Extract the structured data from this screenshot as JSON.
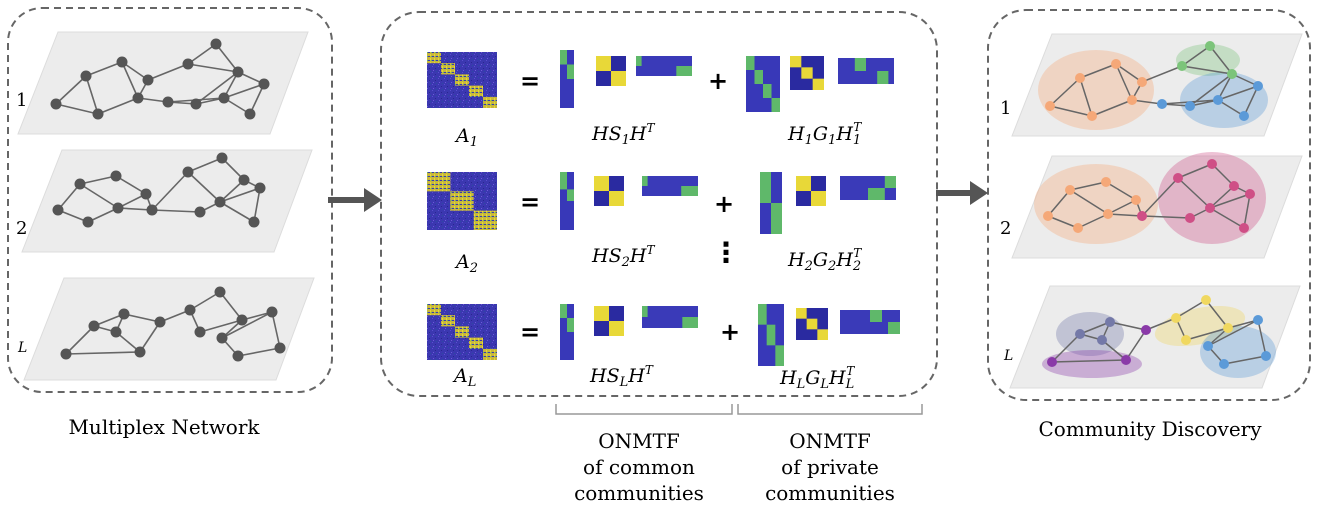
{
  "panels": {
    "left_caption": "Multiplex Network",
    "right_caption": "Community Discovery",
    "layer_labels": [
      "1",
      "2",
      "L"
    ]
  },
  "equations": [
    {
      "lhs_base": "A",
      "lhs_sub": "1",
      "common": {
        "pre": "HS",
        "sub": "1",
        "post": "H",
        "sup": "T"
      },
      "private": {
        "p1": "H",
        "s1": "1",
        "p2": "G",
        "s2": "1",
        "p3": "H",
        "s3": "1",
        "sup": "T"
      }
    },
    {
      "lhs_base": "A",
      "lhs_sub": "2",
      "common": {
        "pre": "HS",
        "sub": "2",
        "post": "H",
        "sup": "T"
      },
      "private": {
        "p1": "H",
        "s1": "2",
        "p2": "G",
        "s2": "2",
        "p3": "H",
        "s3": "2",
        "sup": "T"
      }
    },
    {
      "lhs_base": "A",
      "lhs_sub": "L",
      "common": {
        "pre": "HS",
        "sub": "L",
        "post": "H",
        "sup": "T"
      },
      "private": {
        "p1": "H",
        "s1": "L",
        "p2": "G",
        "s2": "L",
        "p3": "H",
        "s3": "L",
        "sup": "T"
      }
    }
  ],
  "operators": {
    "equals": "=",
    "plus": "+",
    "vdots": "⋮"
  },
  "brackets": {
    "common": [
      "ONMTF",
      "of common",
      "communities"
    ],
    "private": [
      "ONMTF",
      "of private",
      "communities"
    ]
  },
  "colors": {
    "node_gray": "#555555",
    "edge_gray": "#666666",
    "matrix_bg": "#3b37b0",
    "matrix_yellow": "#e8d838",
    "matrix_green": "#5fb86a",
    "community_orange": "#f5a878",
    "community_green": "#7cc47a",
    "community_blue": "#5b9ad8",
    "community_pink": "#cf4f86",
    "community_slate": "#7479a8",
    "community_yellow": "#f0d860",
    "community_purple": "#8a3aa8"
  }
}
